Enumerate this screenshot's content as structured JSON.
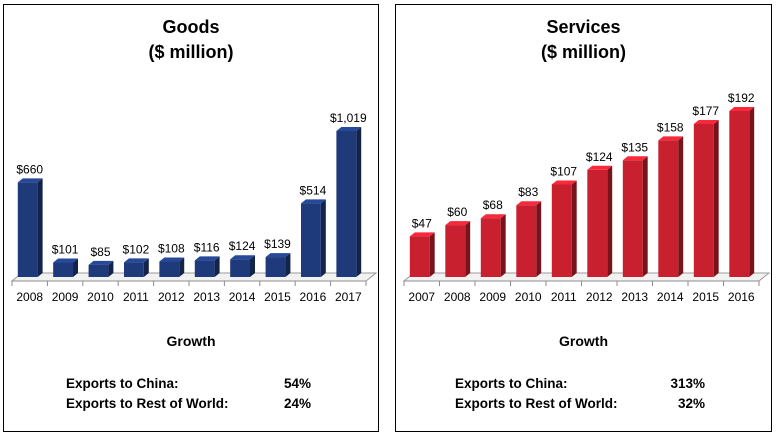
{
  "panels": [
    {
      "id": "goods",
      "title_line1": "Goods",
      "title_line2": "($ million)",
      "growth_title": "Growth",
      "growth": [
        {
          "label": "Exports to China:",
          "value": "54%"
        },
        {
          "label": "Exports to Rest of World:",
          "value": "24%"
        }
      ]
    },
    {
      "id": "services",
      "title_line1": "Services",
      "title_line2": "($ million)",
      "growth_title": "Growth",
      "growth": [
        {
          "label": "Exports to China:",
          "value": "313%"
        },
        {
          "label": "Exports to Rest of World:",
          "value": "32%"
        }
      ]
    }
  ],
  "chart_data": [
    {
      "type": "bar",
      "title": "Goods ($ million)",
      "xlabel": "",
      "ylabel": "",
      "categories": [
        "2008",
        "2009",
        "2010",
        "2011",
        "2012",
        "2013",
        "2014",
        "2015",
        "2016",
        "2017"
      ],
      "values": [
        660,
        101,
        85,
        102,
        108,
        116,
        124,
        139,
        514,
        1019
      ],
      "data_labels": [
        "$660",
        "$101",
        "$85",
        "$102",
        "$108",
        "$116",
        "$124",
        "$139",
        "$514",
        "$1,019"
      ],
      "ylim": [
        0,
        1019
      ],
      "grid": false,
      "color": "#1F3A7A",
      "style": "3d-column"
    },
    {
      "type": "bar",
      "title": "Services ($ million)",
      "xlabel": "",
      "ylabel": "",
      "categories": [
        "2007",
        "2008",
        "2009",
        "2010",
        "2011",
        "2012",
        "2013",
        "2014",
        "2015",
        "2016"
      ],
      "values": [
        47,
        60,
        68,
        83,
        107,
        124,
        135,
        158,
        177,
        192
      ],
      "data_labels": [
        "$47",
        "$60",
        "$68",
        "$83",
        "$107",
        "$124",
        "$135",
        "$158",
        "$177",
        "$192"
      ],
      "ylim": [
        0,
        192
      ],
      "grid": false,
      "color": "#C8202E",
      "style": "3d-column"
    }
  ]
}
